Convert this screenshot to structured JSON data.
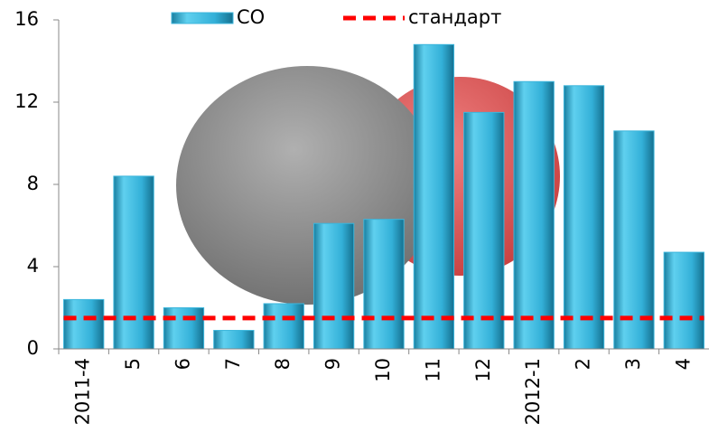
{
  "chart_data": {
    "type": "bar",
    "categories": [
      "2011-4",
      "5",
      "6",
      "7",
      "8",
      "9",
      "10",
      "11",
      "12",
      "2012-1",
      "2",
      "3",
      "4"
    ],
    "series": [
      {
        "name": "CO",
        "type": "bar",
        "color": "#3cb6dc",
        "values": [
          2.4,
          8.4,
          2.0,
          0.9,
          2.2,
          6.1,
          6.3,
          14.8,
          11.5,
          13.0,
          12.8,
          10.6,
          4.7
        ]
      },
      {
        "name": "стандарт",
        "type": "line",
        "color": "#ff0000",
        "values": [
          1.5,
          1.5,
          1.5,
          1.5,
          1.5,
          1.5,
          1.5,
          1.5,
          1.5,
          1.5,
          1.5,
          1.5,
          1.5
        ]
      }
    ],
    "ylim": [
      0,
      16
    ],
    "yticks": [
      0,
      4,
      8,
      12,
      16
    ],
    "grid": false
  }
}
